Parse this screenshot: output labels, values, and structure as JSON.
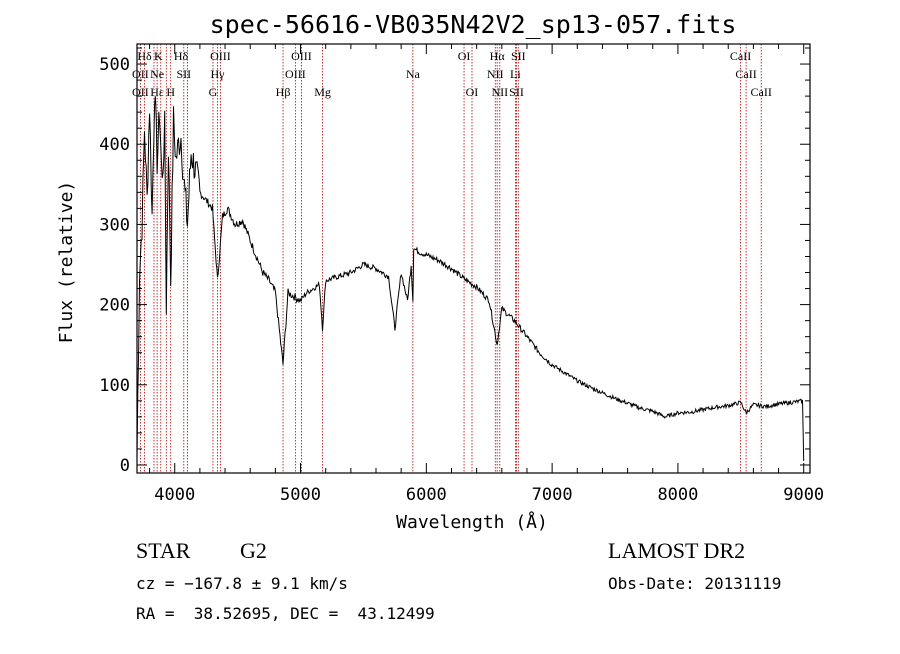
{
  "chart_data": {
    "type": "line",
    "title": "spec-56616-VB035N42V2_sp13-057.fits",
    "xlabel": "Wavelength (Å)",
    "ylabel": "Flux (relative)",
    "xlim": [
      3700,
      9050
    ],
    "ylim": [
      -10,
      525
    ],
    "x_ticks": [
      4000,
      5000,
      6000,
      7000,
      8000,
      9000
    ],
    "y_ticks": [
      0,
      100,
      200,
      300,
      400,
      500
    ],
    "series": [
      {
        "x": [
          3700,
          3720,
          3740,
          3760,
          3780,
          3800,
          3820,
          3840,
          3860,
          3880,
          3900,
          3920,
          3933,
          3950,
          3968,
          3990,
          4010,
          4030,
          4050,
          4070,
          4101,
          4130,
          4160,
          4200,
          4250,
          4300,
          4340,
          4380,
          4420,
          4480,
          4540,
          4600,
          4650,
          4700,
          4750,
          4800,
          4861,
          4900,
          4950,
          5000,
          5050,
          5100,
          5150,
          5175,
          5200,
          5300,
          5400,
          5500,
          5600,
          5700,
          5750,
          5800,
          5850,
          5880,
          5893,
          5900,
          5950,
          6000,
          6100,
          6200,
          6300,
          6400,
          6500,
          6563,
          6600,
          6700,
          6800,
          6900,
          7000,
          7100,
          7200,
          7300,
          7400,
          7500,
          7600,
          7700,
          7800,
          7900,
          8000,
          8100,
          8200,
          8300,
          8400,
          8500,
          8542,
          8600,
          8700,
          8800,
          8900,
          8990,
          9000
        ],
        "y": [
          10,
          240,
          300,
          420,
          330,
          450,
          310,
          470,
          380,
          440,
          350,
          420,
          200,
          400,
          230,
          430,
          380,
          400,
          410,
          360,
          300,
          390,
          370,
          340,
          330,
          320,
          230,
          310,
          320,
          300,
          305,
          280,
          260,
          240,
          230,
          215,
          125,
          215,
          210,
          205,
          215,
          220,
          225,
          170,
          230,
          235,
          240,
          250,
          245,
          235,
          170,
          240,
          205,
          250,
          205,
          270,
          265,
          262,
          255,
          245,
          232,
          222,
          205,
          150,
          195,
          180,
          160,
          140,
          125,
          115,
          105,
          97,
          90,
          83,
          77,
          71,
          67,
          60,
          65,
          66,
          69,
          72,
          74,
          78,
          65,
          75,
          73,
          76,
          78,
          80,
          5
        ]
      }
    ],
    "lines_top": [
      {
        "label": "Hδ",
        "row": 0,
        "x": 3760
      },
      {
        "label": "K",
        "row": 0,
        "x": 3870
      },
      {
        "label": "Hδ",
        "row": 0,
        "x": 4050
      },
      {
        "label": "OIII",
        "row": 0,
        "x": 4363
      },
      {
        "label": "OIII",
        "row": 0,
        "x": 5007
      },
      {
        "label": "OI",
        "row": 0,
        "x": 6300
      },
      {
        "label": "Hα",
        "row": 0,
        "x": 6563
      },
      {
        "label": "SII",
        "row": 0,
        "x": 6731
      },
      {
        "label": "CaII",
        "row": 0,
        "x": 8498
      },
      {
        "label": "OII",
        "row": 1,
        "x": 3727
      },
      {
        "label": "Ne",
        "row": 1,
        "x": 3860
      },
      {
        "label": "SII",
        "row": 1,
        "x": 4072
      },
      {
        "label": "Hγ",
        "row": 1,
        "x": 4340
      },
      {
        "label": "OIII",
        "row": 1,
        "x": 4959
      },
      {
        "label": "Na",
        "row": 1,
        "x": 5893
      },
      {
        "label": "NII",
        "row": 1,
        "x": 6548
      },
      {
        "label": "Li",
        "row": 1,
        "x": 6708
      },
      {
        "label": "CaII",
        "row": 1,
        "x": 8542
      },
      {
        "label": "OII",
        "row": 2,
        "x": 3727
      },
      {
        "label": "Hε",
        "row": 2,
        "x": 3860
      },
      {
        "label": "H",
        "row": 2,
        "x": 3968
      },
      {
        "label": "G",
        "row": 2,
        "x": 4304
      },
      {
        "label": "Hβ",
        "row": 2,
        "x": 4861
      },
      {
        "label": "Mg",
        "row": 2,
        "x": 5175
      },
      {
        "label": "OI",
        "row": 2,
        "x": 6363
      },
      {
        "label": "NII",
        "row": 2,
        "x": 6584
      },
      {
        "label": "SII",
        "row": 2,
        "x": 6717
      },
      {
        "label": "CaII",
        "row": 2,
        "x": 8662
      }
    ],
    "line_positions": [
      3727,
      3760,
      3835,
      3860,
      3889,
      3933,
      3968,
      4072,
      4101,
      4304,
      4340,
      4363,
      4861,
      4959,
      5007,
      5175,
      5893,
      6300,
      6363,
      6548,
      6563,
      6584,
      6708,
      6717,
      6731,
      8498,
      8542,
      8662
    ],
    "colors": {
      "line_marker": "#b00000",
      "spectrum": "#000000"
    }
  },
  "info": {
    "class": "STAR",
    "subclass": "G2",
    "survey": "LAMOST DR2",
    "cz": "cz = −167.8 ± 9.1 km/s",
    "obs_date": "Obs-Date: 20131119",
    "radec": "RA =  38.52695, DEC =  43.12499"
  }
}
